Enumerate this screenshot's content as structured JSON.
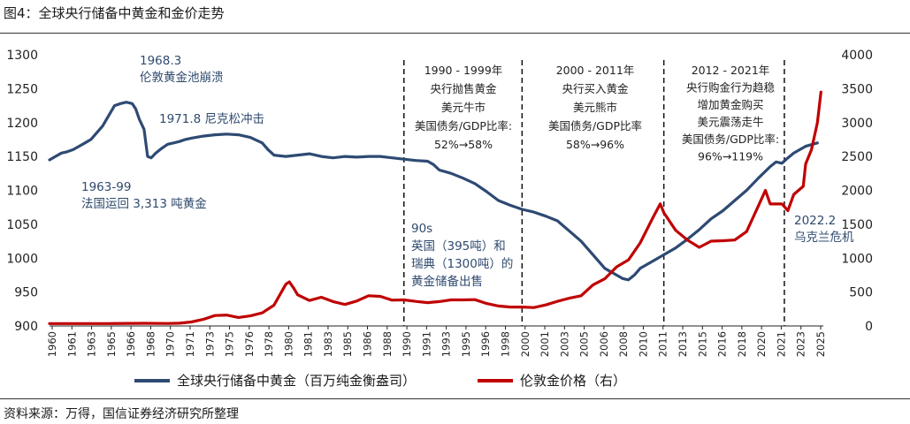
{
  "figure": {
    "title": "图4：全球央行储备中黄金和金价走势",
    "source": "资料来源：万得，国信证券经济研究所整理"
  },
  "colors": {
    "reserves": "#2e4a73",
    "price": "#c00000",
    "divider": "#111111"
  },
  "chart_data": {
    "type": "line",
    "x_range": [
      1960,
      2025.5
    ],
    "y_left": {
      "min": 900,
      "max": 1300,
      "ticks": [
        900,
        950,
        1000,
        1050,
        1100,
        1150,
        1200,
        1250,
        1300
      ]
    },
    "y_right": {
      "min": 0,
      "max": 4000,
      "ticks": [
        0,
        500,
        1000,
        1500,
        2000,
        2500,
        3000,
        3500,
        4000
      ]
    },
    "x_ticks": [
      "1960",
      "1961",
      "1963",
      "1965",
      "1966",
      "1968",
      "1970",
      "1971",
      "1973",
      "1975",
      "1976",
      "1978",
      "1980",
      "1981",
      "1983",
      "1985",
      "1986",
      "1988",
      "1990",
      "1991",
      "1993",
      "1995",
      "1996",
      "1998",
      "2000",
      "2001",
      "2003",
      "2005",
      "2006",
      "2008",
      "2010",
      "2011",
      "2013",
      "2015",
      "2016",
      "2018",
      "2020",
      "2021",
      "2023",
      "2025"
    ],
    "dividers": [
      1990,
      2000,
      2012,
      2022.2
    ],
    "series": [
      {
        "name": "全球央行储备中黄金（百万纯金衡盎司）",
        "axis": "left",
        "points": [
          [
            1960,
            1145
          ],
          [
            1960.5,
            1150
          ],
          [
            1961,
            1155
          ],
          [
            1961.5,
            1157
          ],
          [
            1962,
            1160
          ],
          [
            1962.5,
            1165
          ],
          [
            1963,
            1170
          ],
          [
            1963.5,
            1175
          ],
          [
            1964,
            1185
          ],
          [
            1964.5,
            1195
          ],
          [
            1965,
            1210
          ],
          [
            1965.5,
            1225
          ],
          [
            1966,
            1228
          ],
          [
            1966.5,
            1230
          ],
          [
            1967,
            1228
          ],
          [
            1967.3,
            1220
          ],
          [
            1967.6,
            1205
          ],
          [
            1968,
            1190
          ],
          [
            1968.3,
            1150
          ],
          [
            1968.6,
            1148
          ],
          [
            1969,
            1155
          ],
          [
            1969.5,
            1162
          ],
          [
            1970,
            1168
          ],
          [
            1970.5,
            1170
          ],
          [
            1971,
            1172
          ],
          [
            1971.5,
            1175
          ],
          [
            1972,
            1177
          ],
          [
            1973,
            1180
          ],
          [
            1974,
            1182
          ],
          [
            1975,
            1183
          ],
          [
            1976,
            1182
          ],
          [
            1977,
            1178
          ],
          [
            1978,
            1170
          ],
          [
            1978.5,
            1160
          ],
          [
            1979,
            1152
          ],
          [
            1980,
            1150
          ],
          [
            1981,
            1152
          ],
          [
            1982,
            1154
          ],
          [
            1983,
            1150
          ],
          [
            1984,
            1148
          ],
          [
            1985,
            1150
          ],
          [
            1986,
            1149
          ],
          [
            1987,
            1150
          ],
          [
            1988,
            1150
          ],
          [
            1989,
            1148
          ],
          [
            1990,
            1146
          ],
          [
            1991,
            1144
          ],
          [
            1992,
            1143
          ],
          [
            1992.5,
            1138
          ],
          [
            1993,
            1130
          ],
          [
            1994,
            1125
          ],
          [
            1995,
            1118
          ],
          [
            1996,
            1110
          ],
          [
            1997,
            1098
          ],
          [
            1998,
            1085
          ],
          [
            1999,
            1078
          ],
          [
            2000,
            1072
          ],
          [
            2001,
            1068
          ],
          [
            2002,
            1062
          ],
          [
            2003,
            1055
          ],
          [
            2004,
            1040
          ],
          [
            2005,
            1025
          ],
          [
            2006,
            1005
          ],
          [
            2007,
            985
          ],
          [
            2008,
            975
          ],
          [
            2008.5,
            970
          ],
          [
            2009,
            968
          ],
          [
            2009.5,
            975
          ],
          [
            2010,
            985
          ],
          [
            2011,
            995
          ],
          [
            2012,
            1005
          ],
          [
            2013,
            1015
          ],
          [
            2014,
            1028
          ],
          [
            2015,
            1042
          ],
          [
            2016,
            1058
          ],
          [
            2017,
            1070
          ],
          [
            2018,
            1085
          ],
          [
            2019,
            1100
          ],
          [
            2020,
            1118
          ],
          [
            2021,
            1135
          ],
          [
            2021.5,
            1142
          ],
          [
            2022,
            1140
          ],
          [
            2022.5,
            1148
          ],
          [
            2023,
            1155
          ],
          [
            2024,
            1165
          ],
          [
            2025,
            1170
          ]
        ]
      },
      {
        "name": "伦敦金价格（右）",
        "axis": "right",
        "points": [
          [
            1960,
            35
          ],
          [
            1965,
            35
          ],
          [
            1968,
            39
          ],
          [
            1970,
            36
          ],
          [
            1971,
            40
          ],
          [
            1972,
            58
          ],
          [
            1973,
            97
          ],
          [
            1974,
            154
          ],
          [
            1975,
            160
          ],
          [
            1976,
            125
          ],
          [
            1977,
            148
          ],
          [
            1978,
            193
          ],
          [
            1979,
            306
          ],
          [
            1980,
            615
          ],
          [
            1980.3,
            650
          ],
          [
            1980.7,
            550
          ],
          [
            1981,
            460
          ],
          [
            1982,
            375
          ],
          [
            1983,
            424
          ],
          [
            1984,
            360
          ],
          [
            1985,
            317
          ],
          [
            1986,
            368
          ],
          [
            1987,
            446
          ],
          [
            1988,
            437
          ],
          [
            1989,
            381
          ],
          [
            1990,
            384
          ],
          [
            1991,
            362
          ],
          [
            1992,
            344
          ],
          [
            1993,
            360
          ],
          [
            1994,
            384
          ],
          [
            1995,
            384
          ],
          [
            1996,
            388
          ],
          [
            1997,
            331
          ],
          [
            1998,
            294
          ],
          [
            1999,
            279
          ],
          [
            2000,
            279
          ],
          [
            2001,
            271
          ],
          [
            2002,
            310
          ],
          [
            2003,
            363
          ],
          [
            2004,
            409
          ],
          [
            2005,
            445
          ],
          [
            2006,
            604
          ],
          [
            2007,
            696
          ],
          [
            2008,
            872
          ],
          [
            2009,
            973
          ],
          [
            2010,
            1225
          ],
          [
            2011,
            1572
          ],
          [
            2011.7,
            1800
          ],
          [
            2012,
            1669
          ],
          [
            2013,
            1411
          ],
          [
            2014,
            1266
          ],
          [
            2015,
            1160
          ],
          [
            2016,
            1251
          ],
          [
            2017,
            1257
          ],
          [
            2018,
            1268
          ],
          [
            2019,
            1392
          ],
          [
            2020,
            1770
          ],
          [
            2020.6,
            2000
          ],
          [
            2021,
            1799
          ],
          [
            2022,
            1800
          ],
          [
            2022.5,
            1700
          ],
          [
            2023,
            1940
          ],
          [
            2023.8,
            2060
          ],
          [
            2024,
            2390
          ],
          [
            2024.5,
            2600
          ],
          [
            2025,
            3000
          ],
          [
            2025.3,
            3450
          ]
        ]
      }
    ],
    "annotations": [
      {
        "lines": [
          "1968.3",
          "伦敦黄金池崩溃"
        ],
        "style": "event"
      },
      {
        "lines": [
          "1971.8  尼克松冲击"
        ],
        "style": "event"
      },
      {
        "lines": [
          "1963-99",
          "法国运回 3,313 吨黄金"
        ],
        "style": "event"
      },
      {
        "lines": [
          "1990 - 1999年",
          "央行抛售黄金",
          "美元牛市",
          "美国债务/GDP比率:",
          "52%→58%"
        ],
        "style": "note"
      },
      {
        "lines": [
          "2000 - 2011年",
          "央行买入黄金",
          "美元熊市",
          "美国债务/GDP比率",
          "58%→96%"
        ],
        "style": "note"
      },
      {
        "lines": [
          "2012 - 2021年",
          "央行购金行为趋稳",
          "增加黄金购买",
          "美元震荡走牛",
          "美国债务/GDP比率:",
          "96%→119%"
        ],
        "style": "note"
      },
      {
        "lines": [
          "90s",
          "英国（395吨）和",
          "瑞典（1300吨）的",
          "黄金储备出售"
        ],
        "style": "event"
      },
      {
        "lines": [
          "2022.2",
          "乌克兰危机"
        ],
        "style": "event"
      }
    ],
    "legend": [
      {
        "label": "全球央行储备中黄金（百万纯金衡盎司）",
        "color": "#2e4a73"
      },
      {
        "label": "伦敦金价格（右）",
        "color": "#c00000"
      }
    ]
  }
}
